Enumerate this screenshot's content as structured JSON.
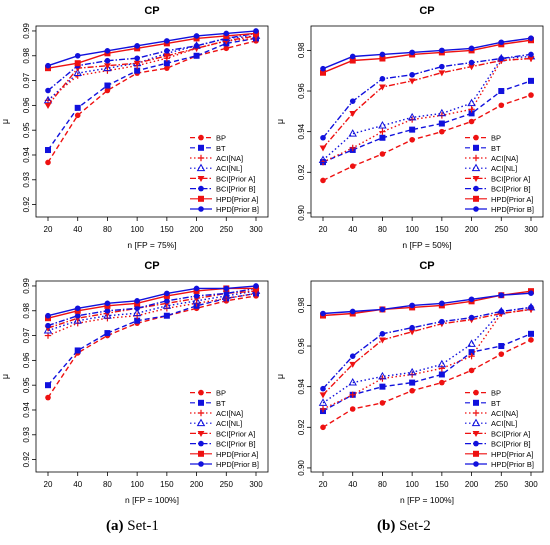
{
  "captions": [
    {
      "letter": "(a)",
      "text": "Set-1"
    },
    {
      "letter": "(b)",
      "text": "Set-2"
    }
  ],
  "legend_marker_colors": {
    "red": "#ee1111",
    "blue": "#1111dd"
  },
  "chart_data": [
    {
      "type": "line",
      "title": "CP",
      "xlabel": "n [FP = 75%]",
      "ylabel": "μ",
      "x": [
        20,
        40,
        80,
        100,
        150,
        200,
        250,
        300
      ],
      "xticks": [
        "20",
        "40",
        "80",
        "100",
        "150",
        "200",
        "250",
        "300"
      ],
      "ylim": [
        0.915,
        0.992
      ],
      "yticks": [
        0.92,
        0.93,
        0.94,
        0.95,
        0.96,
        0.97,
        0.98,
        0.99
      ],
      "ytick_labels": [
        "0.92",
        "0.93",
        "0.94",
        "0.95",
        "0.96",
        "0.97",
        "0.98",
        "0.99"
      ],
      "legend_position": "bottom-right",
      "series": [
        {
          "name": "BP",
          "color": "#ee1111",
          "marker": "circle",
          "dash": "dashed",
          "values": [
            0.937,
            0.956,
            0.966,
            0.973,
            0.975,
            0.98,
            0.983,
            0.986
          ]
        },
        {
          "name": "BT",
          "color": "#1111dd",
          "marker": "square",
          "dash": "dashed",
          "values": [
            0.942,
            0.959,
            0.968,
            0.974,
            0.977,
            0.98,
            0.985,
            0.987
          ]
        },
        {
          "name": "ACI[NA]",
          "color": "#ee1111",
          "marker": "plus",
          "dash": "dotted",
          "values": [
            0.962,
            0.972,
            0.974,
            0.976,
            0.979,
            0.983,
            0.986,
            0.987
          ]
        },
        {
          "name": "ACI[NL]",
          "color": "#1111dd",
          "marker": "triangle",
          "dash": "dotted",
          "values": [
            0.962,
            0.973,
            0.975,
            0.977,
            0.981,
            0.984,
            0.987,
            0.988
          ]
        },
        {
          "name": "BCI[Prior A]",
          "color": "#ee1111",
          "marker": "triangle-down",
          "dash": "dashdot",
          "values": [
            0.96,
            0.975,
            0.976,
            0.977,
            0.98,
            0.983,
            0.986,
            0.988
          ]
        },
        {
          "name": "BCI[Prior B]",
          "color": "#1111dd",
          "marker": "circle",
          "dash": "dashdot",
          "values": [
            0.966,
            0.976,
            0.978,
            0.979,
            0.982,
            0.984,
            0.987,
            0.989
          ]
        },
        {
          "name": "HPD[Prior A]",
          "color": "#ee1111",
          "marker": "square",
          "dash": "solid",
          "values": [
            0.975,
            0.977,
            0.981,
            0.983,
            0.985,
            0.987,
            0.988,
            0.989
          ]
        },
        {
          "name": "HPD[Prior B]",
          "color": "#1111dd",
          "marker": "circle",
          "dash": "solid",
          "values": [
            0.976,
            0.98,
            0.982,
            0.984,
            0.986,
            0.988,
            0.989,
            0.99
          ]
        }
      ]
    },
    {
      "type": "line",
      "title": "CP",
      "xlabel": "n [FP = 50%]",
      "ylabel": "μ",
      "x": [
        20,
        40,
        80,
        100,
        150,
        200,
        250,
        300
      ],
      "xticks": [
        "20",
        "40",
        "80",
        "100",
        "150",
        "200",
        "250",
        "300"
      ],
      "ylim": [
        0.898,
        0.992
      ],
      "yticks": [
        0.9,
        0.92,
        0.94,
        0.96,
        0.98
      ],
      "ytick_labels": [
        "0.90",
        "0.92",
        "0.94",
        "0.96",
        "0.98"
      ],
      "legend_position": "bottom-right",
      "series": [
        {
          "name": "BP",
          "color": "#ee1111",
          "marker": "circle",
          "dash": "dashed",
          "values": [
            0.916,
            0.923,
            0.929,
            0.936,
            0.94,
            0.945,
            0.953,
            0.958
          ]
        },
        {
          "name": "BT",
          "color": "#1111dd",
          "marker": "square",
          "dash": "dashed",
          "values": [
            0.925,
            0.931,
            0.937,
            0.941,
            0.944,
            0.949,
            0.96,
            0.965
          ]
        },
        {
          "name": "ACI[NA]",
          "color": "#ee1111",
          "marker": "plus",
          "dash": "dotted",
          "values": [
            0.925,
            0.932,
            0.94,
            0.946,
            0.948,
            0.951,
            0.975,
            0.976
          ]
        },
        {
          "name": "ACI[NL]",
          "color": "#1111dd",
          "marker": "triangle",
          "dash": "dotted",
          "values": [
            0.926,
            0.939,
            0.943,
            0.947,
            0.949,
            0.954,
            0.976,
            0.977
          ]
        },
        {
          "name": "BCI[Prior A]",
          "color": "#ee1111",
          "marker": "triangle-down",
          "dash": "dashdot",
          "values": [
            0.932,
            0.949,
            0.962,
            0.965,
            0.969,
            0.972,
            0.975,
            0.976
          ]
        },
        {
          "name": "BCI[Prior B]",
          "color": "#1111dd",
          "marker": "circle",
          "dash": "dashdot",
          "values": [
            0.937,
            0.955,
            0.966,
            0.968,
            0.972,
            0.974,
            0.976,
            0.978
          ]
        },
        {
          "name": "HPD[Prior A]",
          "color": "#ee1111",
          "marker": "square",
          "dash": "solid",
          "values": [
            0.969,
            0.975,
            0.976,
            0.978,
            0.979,
            0.98,
            0.983,
            0.985
          ]
        },
        {
          "name": "HPD[Prior B]",
          "color": "#1111dd",
          "marker": "circle",
          "dash": "solid",
          "values": [
            0.971,
            0.977,
            0.978,
            0.979,
            0.98,
            0.981,
            0.984,
            0.986
          ]
        }
      ]
    },
    {
      "type": "line",
      "title": "CP",
      "xlabel": "n [FP = 100%]",
      "ylabel": "μ",
      "x": [
        20,
        40,
        80,
        100,
        150,
        200,
        250,
        300
      ],
      "xticks": [
        "20",
        "40",
        "80",
        "100",
        "150",
        "200",
        "250",
        "300"
      ],
      "ylim": [
        0.915,
        0.992
      ],
      "yticks": [
        0.92,
        0.93,
        0.94,
        0.95,
        0.96,
        0.97,
        0.98,
        0.99
      ],
      "ytick_labels": [
        "0.92",
        "0.93",
        "0.94",
        "0.95",
        "0.96",
        "0.97",
        "0.98",
        "0.99"
      ],
      "legend_position": "bottom-right",
      "series": [
        {
          "name": "BP",
          "color": "#ee1111",
          "marker": "circle",
          "dash": "dashed",
          "values": [
            0.945,
            0.963,
            0.97,
            0.975,
            0.978,
            0.981,
            0.984,
            0.986
          ]
        },
        {
          "name": "BT",
          "color": "#1111dd",
          "marker": "square",
          "dash": "dashed",
          "values": [
            0.95,
            0.964,
            0.971,
            0.976,
            0.978,
            0.982,
            0.985,
            0.987
          ]
        },
        {
          "name": "ACI[NA]",
          "color": "#ee1111",
          "marker": "plus",
          "dash": "dotted",
          "values": [
            0.97,
            0.975,
            0.977,
            0.978,
            0.981,
            0.983,
            0.985,
            0.987
          ]
        },
        {
          "name": "ACI[NL]",
          "color": "#1111dd",
          "marker": "triangle",
          "dash": "dotted",
          "values": [
            0.972,
            0.976,
            0.978,
            0.979,
            0.982,
            0.984,
            0.986,
            0.988
          ]
        },
        {
          "name": "BCI[Prior A]",
          "color": "#ee1111",
          "marker": "triangle-down",
          "dash": "dashdot",
          "values": [
            0.973,
            0.977,
            0.979,
            0.981,
            0.983,
            0.985,
            0.987,
            0.988
          ]
        },
        {
          "name": "BCI[Prior B]",
          "color": "#1111dd",
          "marker": "circle",
          "dash": "dashdot",
          "values": [
            0.974,
            0.978,
            0.98,
            0.981,
            0.984,
            0.986,
            0.987,
            0.989
          ]
        },
        {
          "name": "HPD[Prior A]",
          "color": "#ee1111",
          "marker": "square",
          "dash": "solid",
          "values": [
            0.977,
            0.98,
            0.982,
            0.983,
            0.986,
            0.988,
            0.989,
            0.989
          ]
        },
        {
          "name": "HPD[Prior B]",
          "color": "#1111dd",
          "marker": "circle",
          "dash": "solid",
          "values": [
            0.978,
            0.981,
            0.983,
            0.984,
            0.987,
            0.989,
            0.989,
            0.99
          ]
        }
      ]
    },
    {
      "type": "line",
      "title": "CP",
      "xlabel": "n [FP = 100%]",
      "ylabel": "μ",
      "x": [
        20,
        40,
        80,
        100,
        150,
        200,
        250,
        300
      ],
      "xticks": [
        "20",
        "40",
        "80",
        "100",
        "150",
        "200",
        "250",
        "300"
      ],
      "ylim": [
        0.898,
        0.992
      ],
      "yticks": [
        0.9,
        0.92,
        0.94,
        0.96,
        0.98
      ],
      "ytick_labels": [
        "0.90",
        "0.92",
        "0.94",
        "0.96",
        "0.98"
      ],
      "legend_position": "bottom-right",
      "series": [
        {
          "name": "BP",
          "color": "#ee1111",
          "marker": "circle",
          "dash": "dashed",
          "values": [
            0.92,
            0.929,
            0.932,
            0.938,
            0.942,
            0.948,
            0.956,
            0.963
          ]
        },
        {
          "name": "BT",
          "color": "#1111dd",
          "marker": "square",
          "dash": "dashed",
          "values": [
            0.928,
            0.936,
            0.94,
            0.942,
            0.946,
            0.957,
            0.96,
            0.966
          ]
        },
        {
          "name": "ACI[NA]",
          "color": "#ee1111",
          "marker": "plus",
          "dash": "dotted",
          "values": [
            0.929,
            0.936,
            0.944,
            0.946,
            0.949,
            0.955,
            0.976,
            0.978
          ]
        },
        {
          "name": "ACI[NL]",
          "color": "#1111dd",
          "marker": "triangle",
          "dash": "dotted",
          "values": [
            0.932,
            0.942,
            0.945,
            0.947,
            0.951,
            0.961,
            0.977,
            0.979
          ]
        },
        {
          "name": "BCI[Prior A]",
          "color": "#ee1111",
          "marker": "triangle-down",
          "dash": "dashdot",
          "values": [
            0.936,
            0.951,
            0.963,
            0.967,
            0.971,
            0.973,
            0.976,
            0.978
          ]
        },
        {
          "name": "BCI[Prior B]",
          "color": "#1111dd",
          "marker": "circle",
          "dash": "dashdot",
          "values": [
            0.939,
            0.955,
            0.966,
            0.969,
            0.972,
            0.974,
            0.977,
            0.979
          ]
        },
        {
          "name": "HPD[Prior A]",
          "color": "#ee1111",
          "marker": "square",
          "dash": "solid",
          "values": [
            0.975,
            0.976,
            0.978,
            0.979,
            0.98,
            0.982,
            0.985,
            0.987
          ]
        },
        {
          "name": "HPD[Prior B]",
          "color": "#1111dd",
          "marker": "circle",
          "dash": "solid",
          "values": [
            0.976,
            0.977,
            0.978,
            0.98,
            0.981,
            0.983,
            0.985,
            0.986
          ]
        }
      ]
    }
  ]
}
